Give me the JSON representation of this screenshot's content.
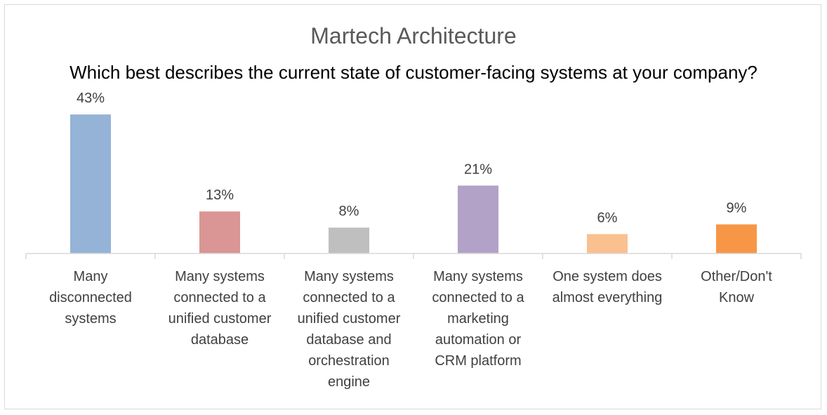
{
  "chart_data": {
    "type": "bar",
    "title": "Martech Architecture",
    "subtitle": "Which best describes the current state of customer-facing systems at your company?",
    "categories": [
      [
        "Many",
        "disconnected",
        "systems"
      ],
      [
        "Many systems",
        "connected to a",
        "unified customer",
        "database"
      ],
      [
        "Many systems",
        "connected to a",
        "unified customer",
        "database and",
        "orchestration",
        "engine"
      ],
      [
        "Many systems",
        "connected to a",
        "marketing",
        "automation or",
        "CRM platform"
      ],
      [
        "One system does",
        "almost everything"
      ],
      [
        "Other/Don't",
        "Know"
      ]
    ],
    "values": [
      43,
      13,
      8,
      21,
      6,
      9
    ],
    "data_labels": [
      "43%",
      "13%",
      "8%",
      "21%",
      "6%",
      "9%"
    ],
    "bar_colors": [
      "#95b3d7",
      "#d99694",
      "#bfbfbf",
      "#b3a2c7",
      "#fac090",
      "#f79646"
    ],
    "ylim": [
      0,
      45
    ],
    "grid": false,
    "legend": "none"
  }
}
